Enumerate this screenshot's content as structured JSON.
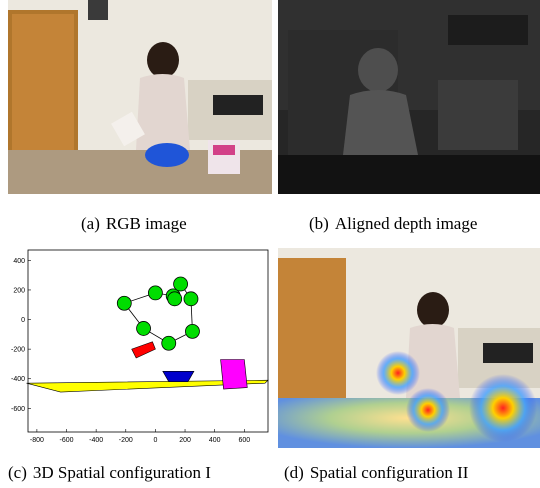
{
  "figure": {
    "panels": [
      {
        "label": "(a)",
        "caption": "RGB image"
      },
      {
        "label": "(b)",
        "caption": "Aligned depth image"
      },
      {
        "label": "(c)",
        "caption": "3D Spatial configuration I"
      },
      {
        "label": "(d)",
        "caption": "Spatial configuration II"
      }
    ]
  },
  "chart_data": {
    "type": "scatter",
    "title": "",
    "xlabel": "",
    "ylabel": "",
    "x_ticks": [
      -800,
      -600,
      -400,
      -200,
      0,
      200,
      400,
      600
    ],
    "y_ticks": [
      400,
      200,
      0,
      -200,
      -400,
      -600
    ],
    "xlim": [
      -860,
      760
    ],
    "ylim": [
      -760,
      470
    ],
    "grid": false,
    "series": [
      {
        "values": [
          {
            "x": 0,
            "y": 180
          },
          {
            "x": 120,
            "y": 160
          },
          {
            "x": 170,
            "y": 240
          },
          {
            "x": 240,
            "y": 140
          },
          {
            "x": -210,
            "y": 110
          },
          {
            "x": 130,
            "y": 140
          },
          {
            "x": -80,
            "y": -60
          },
          {
            "x": 250,
            "y": -80
          },
          {
            "x": 90,
            "y": -160
          }
        ]
      }
    ],
    "skeleton_edges": [
      [
        0,
        1
      ],
      [
        1,
        2
      ],
      [
        2,
        3
      ],
      [
        0,
        4
      ],
      [
        1,
        5
      ],
      [
        4,
        6
      ],
      [
        3,
        7
      ],
      [
        7,
        8
      ],
      [
        6,
        8
      ]
    ],
    "shapes": [
      {
        "kind": "table",
        "color": "#ffff00",
        "points": [
          [
            -870,
            -430
          ],
          [
            760,
            -410
          ],
          [
            740,
            -430
          ],
          [
            -640,
            -490
          ]
        ]
      },
      {
        "kind": "bowl",
        "color": "#0000cc",
        "points": [
          [
            50,
            -350
          ],
          [
            260,
            -350
          ],
          [
            220,
            -420
          ],
          [
            90,
            -420
          ]
        ]
      },
      {
        "kind": "box",
        "color": "#ff00ff",
        "points": [
          [
            440,
            -270
          ],
          [
            600,
            -270
          ],
          [
            620,
            -460
          ],
          [
            460,
            -470
          ]
        ]
      },
      {
        "kind": "bottle",
        "color": "#ff0000",
        "points": [
          [
            -160,
            -200
          ],
          [
            -20,
            -150
          ],
          [
            0,
            -200
          ],
          [
            -130,
            -260
          ]
        ]
      }
    ]
  }
}
